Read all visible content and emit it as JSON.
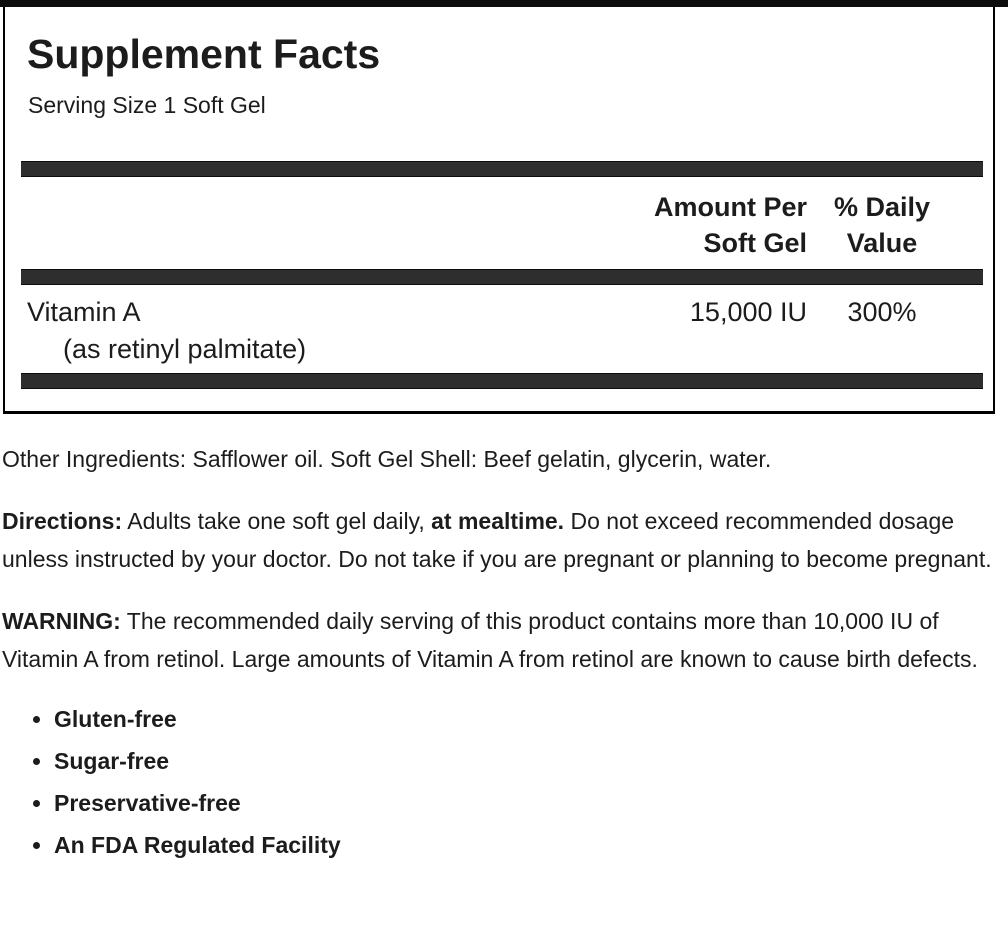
{
  "colors": {
    "bar": "#2e2e2e",
    "border": "#000000",
    "text": "#1c1c1c"
  },
  "facts_panel": {
    "title": "Supplement Facts",
    "serving_size": "Serving Size 1 Soft Gel",
    "columns": {
      "amount_line1": "Amount Per",
      "amount_line2": "Soft Gel",
      "dv_line1": "% Daily",
      "dv_line2": "Value"
    },
    "rows": [
      {
        "name": "Vitamin A",
        "name_detail": "(as retinyl palmitate)",
        "amount": "15,000 IU",
        "daily_value": "300%"
      }
    ]
  },
  "details": {
    "other_ingredients_label": "Other Ingredients:",
    "other_ingredients_text": " Safflower oil. Soft Gel Shell: Beef gelatin, glycerin, water.",
    "directions_label": "Directions:",
    "directions_text1": " Adults take one soft gel daily, ",
    "directions_bold": "at mealtime.",
    "directions_text2": " Do not exceed recommended dosage unless instructed by your doctor. Do not take if you are pregnant or planning to become pregnant.",
    "warning_label": "WARNING:",
    "warning_text": " The recommended daily serving of this product contains more than 10,000 IU of Vitamin A from retinol. Large amounts of Vitamin A from retinol are known to cause birth defects.",
    "features": [
      "Gluten-free",
      "Sugar-free",
      "Preservative-free",
      "An FDA Regulated Facility"
    ]
  }
}
